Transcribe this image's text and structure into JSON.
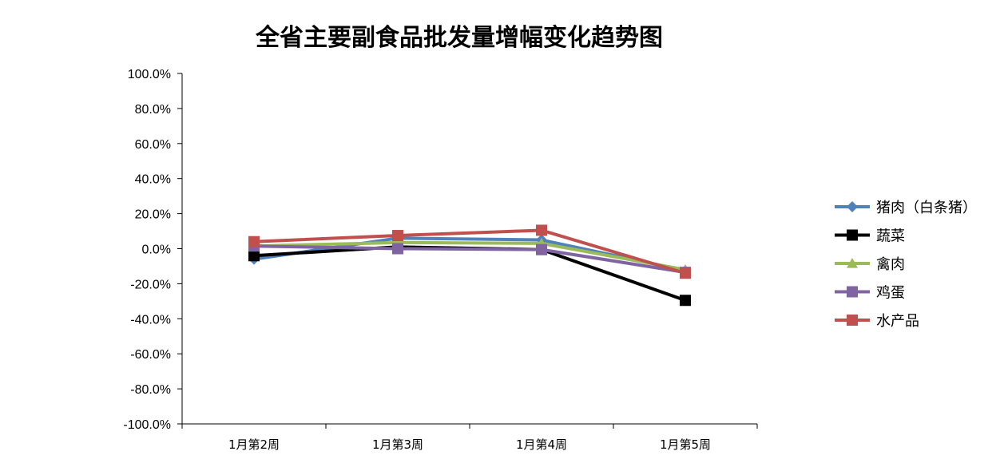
{
  "chart_data": {
    "type": "line",
    "title": "全省主要副食品批发量增幅变化趋势图",
    "xlabel": "",
    "ylabel": "",
    "categories": [
      "1月第2周",
      "1月第3周",
      "1月第4周",
      "1月第5周"
    ],
    "ylim": [
      -100,
      100
    ],
    "ytick_step": 20,
    "ytick_format": "percent_1dp",
    "grid": false,
    "legend_position": "right",
    "series": [
      {
        "name": "猪肉（白条猪）",
        "color": "#4F81BD",
        "marker": "diamond",
        "values": [
          -6.0,
          6.0,
          5.0,
          -12.5
        ]
      },
      {
        "name": "蔬菜",
        "color": "#000000",
        "marker": "square",
        "values": [
          -4.0,
          1.0,
          -0.5,
          -29.5
        ]
      },
      {
        "name": "禽肉",
        "color": "#9BBB59",
        "marker": "triangle",
        "values": [
          1.5,
          3.5,
          3.0,
          -12.0
        ]
      },
      {
        "name": "鸡蛋",
        "color": "#8064A2",
        "marker": "square",
        "values": [
          1.5,
          0.0,
          -0.5,
          -13.5
        ]
      },
      {
        "name": "水产品",
        "color": "#C0504D",
        "marker": "square",
        "values": [
          4.0,
          7.5,
          10.5,
          -14.0
        ]
      }
    ]
  }
}
